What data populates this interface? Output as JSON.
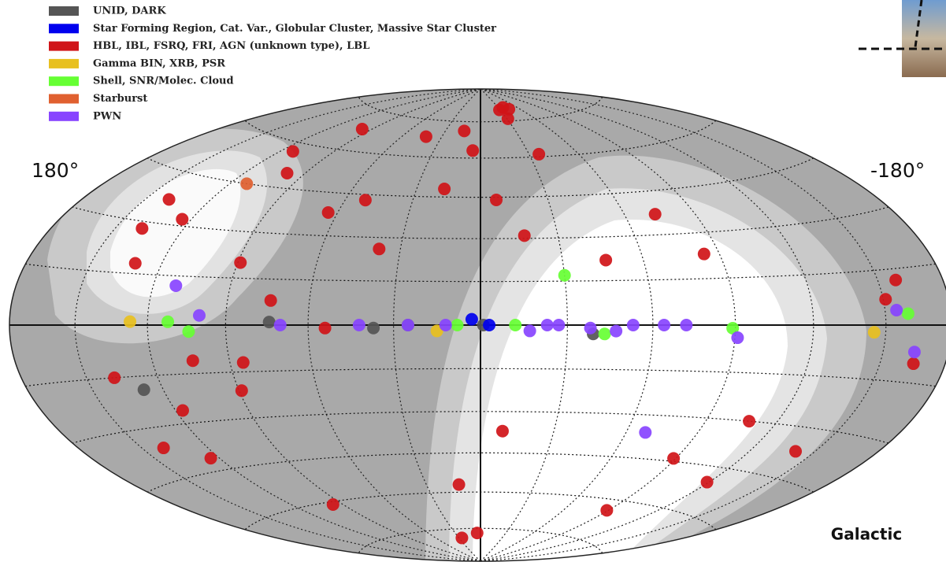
{
  "chart_data": {
    "type": "hammer",
    "frame_label": "Galactic",
    "xlim": [
      180,
      -180
    ],
    "xticks": [
      {
        "value": 180,
        "label": "180°"
      },
      {
        "value": -180,
        "label": "-180°"
      }
    ],
    "series": [
      {
        "name": "UNID, DARK",
        "color": "#555555",
        "x": [
          74,
          37,
          25,
          -1,
          128,
          -39
        ],
        "y": [
          1,
          -1,
          0,
          0,
          -19,
          -3
        ]
      },
      {
        "name": "Star Forming Region, Cat. Var., Globular Cluster, Massive Star Cluster",
        "color": "#0000ee",
        "x": [
          3,
          -3
        ],
        "y": [
          2,
          0
        ]
      },
      {
        "name": "HBL, IBL, FSRQ, FRI, AGN (unknown type), LBL",
        "color": "#d01418",
        "x": [
          -29,
          -38,
          -44,
          -31,
          97,
          42,
          14,
          5,
          113,
          99,
          -36,
          17,
          -7,
          139,
          64,
          51,
          -73,
          -17,
          -46,
          138,
          124,
          38,
          89,
          131,
          -84,
          74,
          -158,
          -151,
          104,
          85,
          138,
          89,
          117,
          -165,
          54,
          -108,
          140,
          124,
          -9,
          -141,
          -89,
          -119,
          12,
          96,
          -89,
          26,
          4
        ],
        "y": [
          80,
          81,
          80,
          76,
          68,
          68,
          71,
          63,
          57,
          50,
          61,
          48,
          44,
          37,
          38,
          43,
          37,
          31,
          22,
          28,
          32,
          26,
          20,
          18,
          23,
          8,
          12,
          7,
          -11,
          -12,
          -15,
          -21,
          -26,
          -10,
          -1,
          -30,
          -36,
          -41,
          -37,
          -37,
          -44,
          -50,
          -57,
          -61,
          -64,
          -79,
          -77
        ]
      },
      {
        "name": "Gamma BIN, XRB, PSR",
        "color": "#e8c020",
        "x": [
          127,
          -145,
          15
        ],
        "y": [
          1,
          -2,
          -2
        ]
      },
      {
        "name": "Shell, SNR/Molec. Cloud",
        "color": "#66ff33",
        "x": [
          -30,
          104,
          112,
          -12,
          -89,
          -160,
          -43,
          8
        ],
        "y": [
          17,
          -2,
          1,
          0,
          -1,
          3,
          -3,
          0
        ]
      },
      {
        "name": "Starburst",
        "color": "#e06030",
        "x": [
          112
        ],
        "y": [
          45
        ]
      },
      {
        "name": "PWN",
        "color": "#8844ff",
        "x": [
          100,
          111,
          70,
          42,
          25,
          12,
          -17,
          -27,
          -38,
          -47,
          -53,
          -64,
          -72,
          -91,
          -155,
          -164,
          -68,
          -23
        ],
        "y": [
          3,
          12,
          0,
          0,
          0,
          0,
          -2,
          0,
          -1,
          -2,
          0,
          0,
          0,
          -4,
          4,
          -7,
          -36,
          0
        ]
      }
    ]
  }
}
